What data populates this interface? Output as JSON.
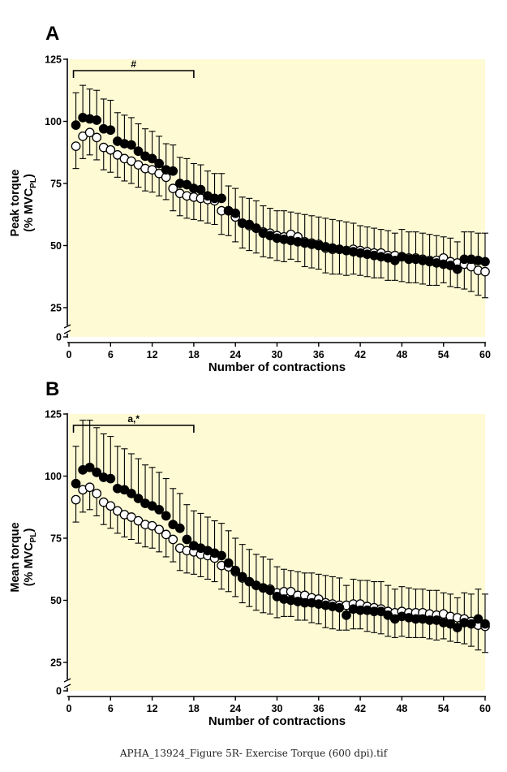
{
  "figure_caption": "APHA_13924_Figure 5R- Exercise Torque (600 dpi).tif",
  "colors": {
    "plot_bg": "#fdfad4",
    "axis": "#000000",
    "marker_fill_a": "#000000",
    "marker_fill_b": "#ffffff"
  },
  "chart_data": [
    {
      "type": "scatter",
      "panel_label": "A",
      "ylabel_main": "Peak torque",
      "ylabel_unit_pre": "(% MVC",
      "ylabel_unit_sub": "PL",
      "ylabel_unit_post": ")",
      "xlabel": "Number of contractions",
      "xlim": [
        0,
        60
      ],
      "ylim": [
        0,
        125
      ],
      "axis_break": true,
      "xticks": [
        0,
        6,
        12,
        18,
        24,
        30,
        36,
        42,
        48,
        54,
        60
      ],
      "yticks": [
        0,
        25,
        50,
        75,
        100,
        125
      ],
      "significance": {
        "label": "#",
        "x_start": 1,
        "x_end": 18
      },
      "series": [
        {
          "name": "filled",
          "marker": "filled-circle",
          "x": [
            1,
            2,
            3,
            4,
            5,
            6,
            7,
            8,
            9,
            10,
            11,
            12,
            13,
            14,
            15,
            16,
            17,
            18,
            19,
            20,
            21,
            22,
            23,
            24,
            25,
            26,
            27,
            28,
            29,
            30,
            31,
            32,
            33,
            34,
            35,
            36,
            37,
            38,
            39,
            40,
            41,
            42,
            43,
            44,
            45,
            46,
            47,
            48,
            49,
            50,
            51,
            52,
            53,
            54,
            55,
            56,
            57,
            58,
            59,
            60
          ],
          "y": [
            98.5,
            101.5,
            101,
            100.5,
            97,
            96.5,
            92,
            91,
            90.5,
            88,
            86,
            85,
            83,
            80.5,
            80,
            75,
            74.5,
            73,
            72.5,
            70,
            69,
            69,
            64,
            63,
            59,
            58.5,
            57,
            55,
            54,
            53,
            52.5,
            52,
            51.5,
            51,
            50.5,
            50,
            49.5,
            49,
            48.5,
            48,
            47.5,
            47,
            46.5,
            46,
            45.5,
            45,
            44,
            45.5,
            44.5,
            44.5,
            44,
            43.5,
            43,
            42.5,
            42,
            40.5,
            44.5,
            44.5,
            44,
            43.5
          ],
          "err": [
            13,
            13,
            12,
            12,
            12,
            12,
            11.5,
            11.5,
            11,
            11,
            11,
            11,
            11,
            10.5,
            10.5,
            10.5,
            10.5,
            10,
            10,
            10,
            10,
            10,
            10,
            10,
            10.5,
            10.5,
            11,
            11,
            11,
            11,
            11.5,
            11.5,
            11.5,
            11.5,
            11.5,
            11.5,
            11.5,
            11.5,
            11.5,
            11.5,
            11.5,
            11,
            11,
            11,
            11,
            11,
            11,
            11,
            11,
            11,
            11,
            11,
            11,
            11,
            11,
            11,
            11,
            11,
            11,
            11.5
          ]
        },
        {
          "name": "open",
          "marker": "open-circle",
          "x": [
            1,
            2,
            3,
            4,
            5,
            6,
            7,
            8,
            9,
            10,
            11,
            12,
            13,
            14,
            15,
            16,
            17,
            18,
            19,
            20,
            21,
            22,
            23,
            24,
            25,
            26,
            27,
            28,
            29,
            30,
            31,
            32,
            33,
            34,
            35,
            36,
            37,
            38,
            39,
            40,
            41,
            42,
            43,
            44,
            45,
            46,
            47,
            48,
            49,
            50,
            51,
            52,
            53,
            54,
            55,
            56,
            57,
            58,
            59,
            60
          ],
          "y": [
            90,
            94,
            95.5,
            93.5,
            89.5,
            88.5,
            86.5,
            85,
            84,
            82.5,
            81,
            80.5,
            79,
            77.5,
            73,
            71,
            70,
            69.5,
            69,
            68.5,
            68,
            64,
            64,
            61.5,
            59,
            58,
            57,
            55.5,
            55,
            54,
            53.5,
            54.5,
            53.5,
            51.5,
            51,
            50.5,
            49,
            48.5,
            48.5,
            48,
            48.5,
            48,
            47.5,
            47,
            47,
            46,
            46,
            45.5,
            45,
            45,
            44.5,
            44,
            44,
            45,
            43.5,
            43,
            42.5,
            41.5,
            40,
            39.5
          ],
          "err": [
            9,
            9,
            9,
            9,
            9,
            9,
            9,
            9,
            9,
            9,
            9,
            9,
            9,
            9,
            9,
            9,
            9,
            9,
            9,
            9.5,
            9.5,
            9.5,
            10,
            10,
            10,
            10,
            10,
            10,
            10,
            10,
            10,
            10,
            10,
            10,
            10,
            10,
            10,
            10,
            10,
            10,
            10,
            10,
            10,
            10,
            10,
            10,
            10,
            10,
            10,
            10,
            10,
            10,
            10,
            10,
            10,
            10,
            10,
            10,
            10,
            10.5
          ]
        }
      ]
    },
    {
      "type": "scatter",
      "panel_label": "B",
      "ylabel_main": "Mean torque",
      "ylabel_unit_pre": "(% MVC",
      "ylabel_unit_sub": "PL",
      "ylabel_unit_post": ")",
      "xlabel": "Number of contractions",
      "xlim": [
        0,
        60
      ],
      "ylim": [
        0,
        125
      ],
      "axis_break": true,
      "xticks": [
        0,
        6,
        12,
        18,
        24,
        30,
        36,
        42,
        48,
        54,
        60
      ],
      "yticks": [
        0,
        25,
        50,
        75,
        100,
        125
      ],
      "significance": {
        "label": "a,*",
        "x_start": 1,
        "x_end": 18
      },
      "series": [
        {
          "name": "filled",
          "marker": "filled-circle",
          "x": [
            1,
            2,
            3,
            4,
            5,
            6,
            7,
            8,
            9,
            10,
            11,
            12,
            13,
            14,
            15,
            16,
            17,
            18,
            19,
            20,
            21,
            22,
            23,
            24,
            25,
            26,
            27,
            28,
            29,
            30,
            31,
            32,
            33,
            34,
            35,
            36,
            37,
            38,
            39,
            40,
            41,
            42,
            43,
            44,
            45,
            46,
            47,
            48,
            49,
            50,
            51,
            52,
            53,
            54,
            55,
            56,
            57,
            58,
            59,
            60
          ],
          "y": [
            97,
            102.5,
            103.5,
            101.5,
            99.5,
            99,
            95,
            94.5,
            93,
            91,
            89,
            88,
            86.5,
            84,
            80.5,
            79,
            74.5,
            72,
            71,
            70,
            69,
            68,
            65,
            62,
            59.5,
            57.5,
            56,
            55,
            54,
            51.5,
            50.5,
            50,
            49.5,
            49,
            49,
            48.5,
            48,
            47.5,
            47,
            44,
            46.5,
            46,
            46,
            45.5,
            45.5,
            44,
            42.5,
            43.5,
            43,
            42.5,
            42.5,
            42,
            42,
            41,
            40.5,
            39,
            41,
            40.5,
            42.5,
            40.5
          ],
          "err": [
            15,
            20,
            19,
            18,
            17.5,
            17,
            17,
            16.5,
            16,
            16,
            15.5,
            15.5,
            15,
            15,
            14.5,
            14,
            14,
            14,
            14,
            13.5,
            13,
            13,
            13,
            13,
            13,
            13,
            12.5,
            12.5,
            12.5,
            12,
            12,
            12,
            12,
            12,
            12,
            12,
            12,
            12,
            12,
            12,
            12,
            12,
            12,
            12,
            12,
            12,
            12,
            12,
            12,
            12,
            12,
            12,
            12,
            12,
            12,
            12,
            12,
            12,
            12,
            12
          ]
        },
        {
          "name": "open",
          "marker": "open-circle",
          "x": [
            1,
            2,
            3,
            4,
            5,
            6,
            7,
            8,
            9,
            10,
            11,
            12,
            13,
            14,
            15,
            16,
            17,
            18,
            19,
            20,
            21,
            22,
            23,
            24,
            25,
            26,
            27,
            28,
            29,
            30,
            31,
            32,
            33,
            34,
            35,
            36,
            37,
            38,
            39,
            40,
            41,
            42,
            43,
            44,
            45,
            46,
            47,
            48,
            49,
            50,
            51,
            52,
            53,
            54,
            55,
            56,
            57,
            58,
            59,
            60
          ],
          "y": [
            90.5,
            94.5,
            95.5,
            93,
            89.5,
            88,
            86,
            84.5,
            83.5,
            82,
            80.5,
            80,
            78.5,
            76.5,
            74.5,
            71,
            70,
            69.5,
            68.5,
            68,
            67,
            64,
            63.5,
            61.5,
            59,
            57.5,
            56,
            55,
            54.5,
            53,
            53.5,
            53.5,
            52,
            52,
            51,
            50.5,
            49,
            48.5,
            48,
            48,
            48.5,
            48.5,
            47.5,
            47,
            46.5,
            45.5,
            45,
            45.5,
            45,
            45,
            45,
            44.5,
            44,
            44.5,
            43.5,
            43,
            42.5,
            41.5,
            40,
            39.5
          ],
          "err": [
            9,
            9,
            9,
            9,
            9,
            9,
            9,
            9,
            9,
            9,
            9,
            9,
            9,
            9,
            9,
            9,
            9,
            9,
            9,
            9.5,
            9.5,
            9.5,
            10,
            10,
            10,
            10,
            10,
            10,
            10,
            10,
            10,
            10,
            10,
            10,
            10,
            10,
            10,
            10,
            10,
            10,
            10,
            10,
            10,
            10,
            10,
            10,
            10,
            10,
            10,
            10,
            10,
            10,
            10,
            10,
            10,
            10,
            10,
            10,
            10,
            10.5
          ]
        }
      ]
    }
  ]
}
